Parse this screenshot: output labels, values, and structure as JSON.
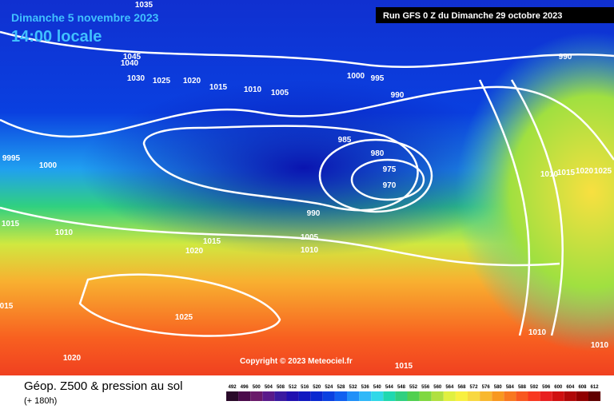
{
  "header": {
    "date": "Dimanche 5 novembre 2023",
    "time": "14:00 locale",
    "run": "Run GFS 0 Z du Dimanche 29 octobre 2023"
  },
  "copyright": "Copyright © 2023 Meteociel.fr",
  "footer": {
    "title": "Géop. Z500 & pression au sol",
    "subtitle": "(+ 180h)"
  },
  "legend": {
    "labels": [
      "492",
      "496",
      "500",
      "504",
      "508",
      "512",
      "516",
      "520",
      "524",
      "528",
      "532",
      "536",
      "540",
      "544",
      "548",
      "552",
      "556",
      "560",
      "564",
      "568",
      "572",
      "576",
      "580",
      "584",
      "588",
      "592",
      "596",
      "600",
      "604",
      "608",
      "612"
    ],
    "colors": [
      "#2a0a2a",
      "#4a0a4a",
      "#6a1a6a",
      "#5a1a8a",
      "#3a1aa0",
      "#2010b0",
      "#1018c0",
      "#0a28d0",
      "#0a40e0",
      "#1060f0",
      "#2090f8",
      "#30b8f8",
      "#30d8e8",
      "#20d8b0",
      "#30d080",
      "#50d050",
      "#80d840",
      "#b0e040",
      "#e0f040",
      "#f8f040",
      "#f8d840",
      "#f8b830",
      "#f89820",
      "#f87820",
      "#f85820",
      "#f83820",
      "#e82020",
      "#d01010",
      "#b00808",
      "#900000",
      "#600000"
    ]
  },
  "isobars": [
    "1035",
    "1045",
    "1040",
    "1030",
    "1025",
    "1020",
    "1015",
    "1010",
    "1005",
    "1000",
    "995",
    "990",
    "990",
    "985",
    "980",
    "975",
    "970",
    "9995",
    "1000",
    "990",
    "1005",
    "1010",
    "1015",
    "1020",
    "1010",
    "1015",
    "015",
    "1025",
    "1020",
    "1015",
    "1010",
    "1010",
    "1010",
    "1015",
    "1020",
    "1025"
  ]
}
